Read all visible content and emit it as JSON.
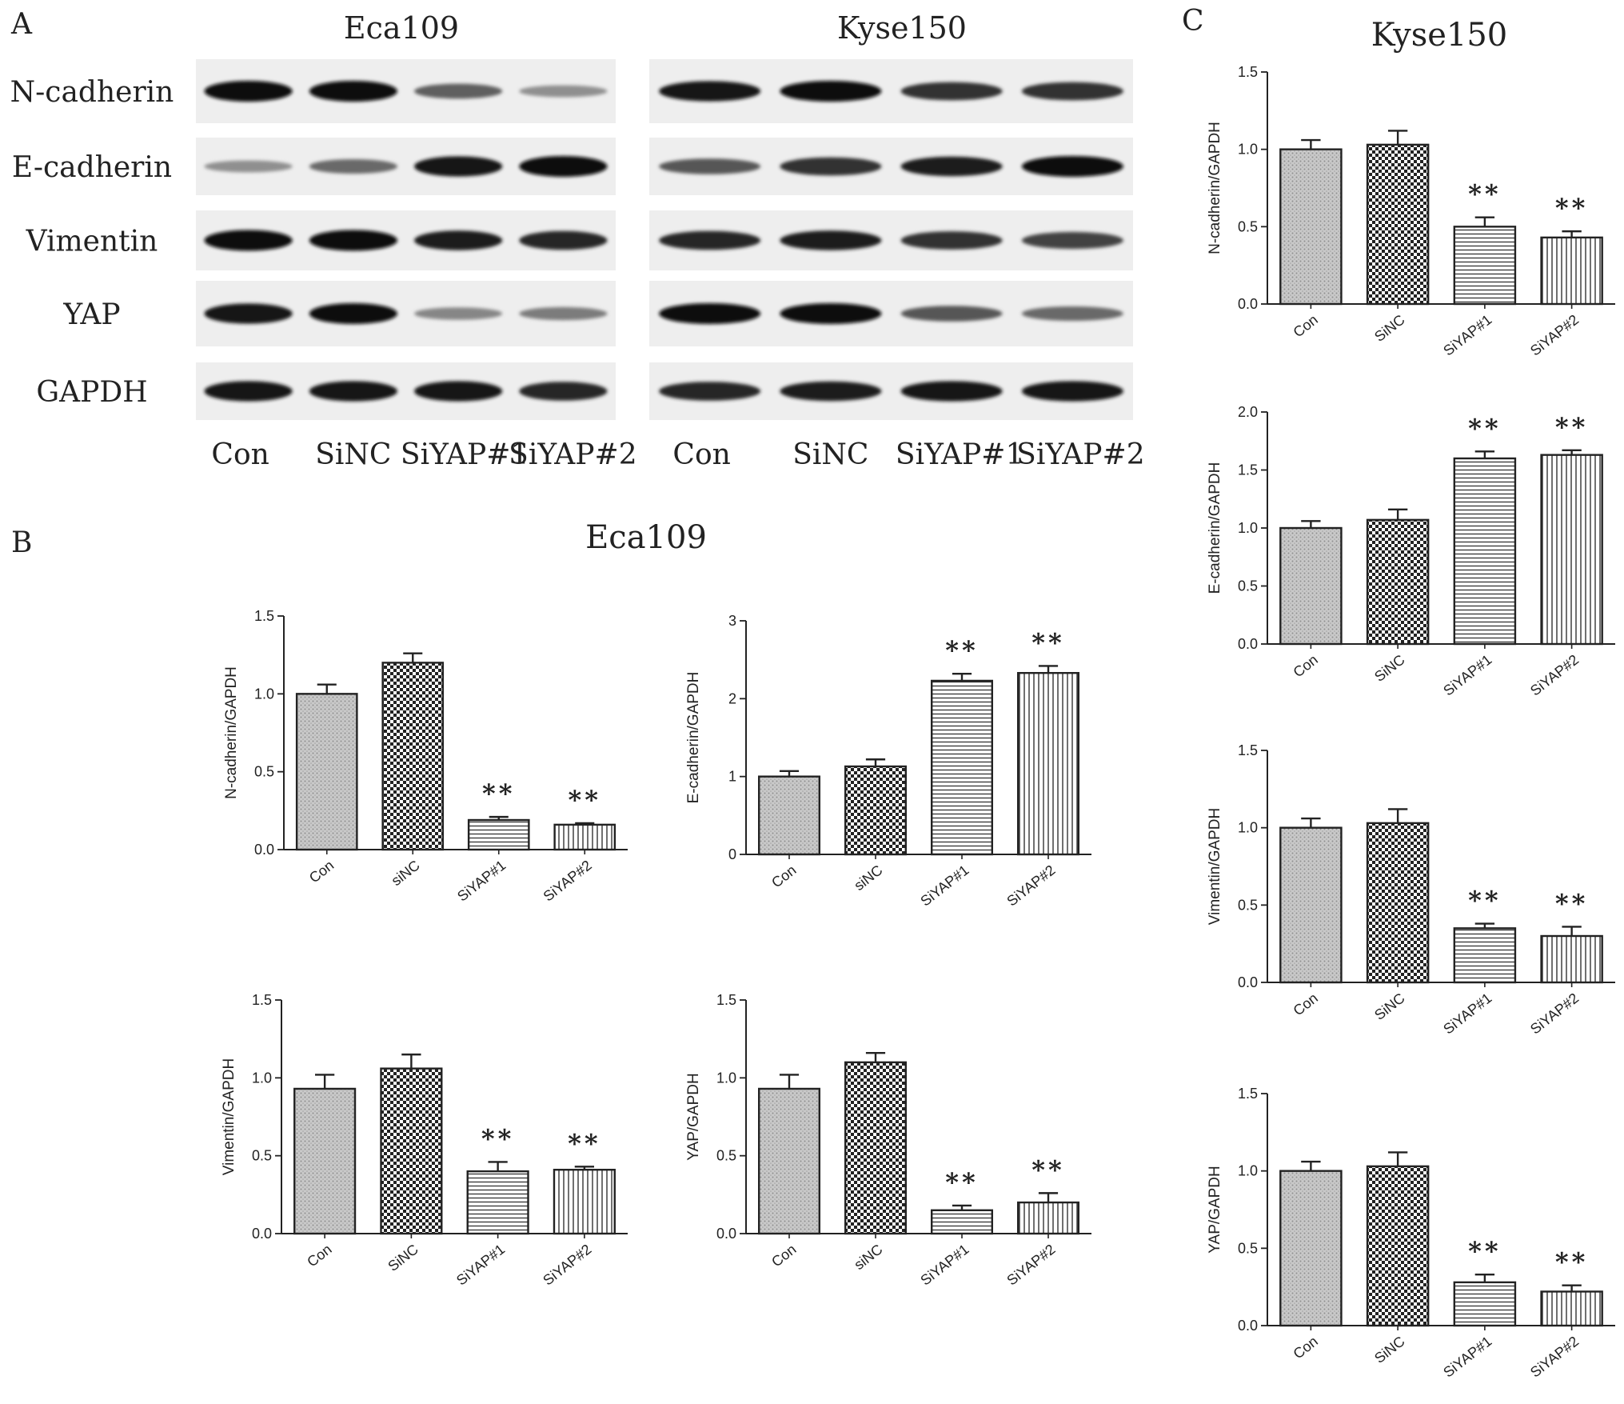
{
  "panels": {
    "a": {
      "letter": "A"
    },
    "b": {
      "letter": "B",
      "title": "Eca109"
    },
    "c": {
      "letter": "C",
      "title": "Kyse150"
    }
  },
  "blot": {
    "blocks": [
      {
        "title": "Eca109",
        "lanes": [
          "Con",
          "SiNC",
          "SiYAP#1",
          "SiYAP#2"
        ],
        "rows": [
          {
            "label": "N-cadherin",
            "intensity": [
              1.0,
              1.0,
              0.55,
              0.3
            ]
          },
          {
            "label": "E-cadherin",
            "intensity": [
              0.3,
              0.5,
              0.95,
              1.0
            ]
          },
          {
            "label": "Vimentin",
            "intensity": [
              1.0,
              1.0,
              0.9,
              0.85
            ]
          },
          {
            "label": "YAP",
            "intensity": [
              0.95,
              1.0,
              0.35,
              0.4
            ]
          },
          {
            "label": "GAPDH",
            "intensity": [
              0.95,
              0.95,
              0.95,
              0.85
            ]
          }
        ]
      },
      {
        "title": "Kyse150",
        "lanes": [
          "Con",
          "SiNC",
          "SiYAP#1",
          "SiYAP#2"
        ],
        "rows": [
          {
            "label": "N-cadherin",
            "intensity": [
              0.95,
              1.0,
              0.8,
              0.8
            ]
          },
          {
            "label": "E-cadherin",
            "intensity": [
              0.6,
              0.8,
              0.9,
              1.0
            ]
          },
          {
            "label": "Vimentin",
            "intensity": [
              0.85,
              0.9,
              0.8,
              0.7
            ]
          },
          {
            "label": "YAP",
            "intensity": [
              1.0,
              1.0,
              0.6,
              0.5
            ]
          },
          {
            "label": "GAPDH",
            "intensity": [
              0.85,
              0.9,
              0.95,
              0.95
            ]
          }
        ]
      }
    ]
  },
  "chart_data": [
    {
      "type": "bar",
      "panel": "B",
      "cell": "Eca109",
      "ylabel": "N-cadherin/GAPDH",
      "ylim": [
        0,
        1.5
      ],
      "yticks": [
        "0.0",
        "0.5",
        "1.0",
        "1.5"
      ],
      "categories": [
        "Con",
        "siNC",
        "SiYAP#1",
        "SiYAP#2"
      ],
      "values": [
        1.0,
        1.2,
        0.19,
        0.16
      ],
      "errors": [
        0.06,
        0.06,
        0.02,
        0.01
      ],
      "annotations": [
        "",
        "",
        "**",
        "**"
      ]
    },
    {
      "type": "bar",
      "panel": "B",
      "cell": "Eca109",
      "ylabel": "E-cadherin/GAPDH",
      "ylim": [
        0,
        3
      ],
      "yticks": [
        "0",
        "1",
        "2",
        "3"
      ],
      "categories": [
        "Con",
        "siNC",
        "SiYAP#1",
        "SiYAP#2"
      ],
      "values": [
        1.0,
        1.13,
        2.23,
        2.33
      ],
      "errors": [
        0.07,
        0.09,
        0.09,
        0.09
      ],
      "annotations": [
        "",
        "",
        "**",
        "**"
      ]
    },
    {
      "type": "bar",
      "panel": "B",
      "cell": "Eca109",
      "ylabel": "Vimentin/GAPDH",
      "ylim": [
        0,
        1.5
      ],
      "yticks": [
        "0.0",
        "0.5",
        "1.0",
        "1.5"
      ],
      "categories": [
        "Con",
        "SiNC",
        "SiYAP#1",
        "SiYAP#2"
      ],
      "values": [
        0.93,
        1.06,
        0.4,
        0.41
      ],
      "errors": [
        0.09,
        0.09,
        0.06,
        0.02
      ],
      "annotations": [
        "",
        "",
        "**",
        "**"
      ]
    },
    {
      "type": "bar",
      "panel": "B",
      "cell": "Eca109",
      "ylabel": "YAP/GAPDH",
      "ylim": [
        0,
        1.5
      ],
      "yticks": [
        "0.0",
        "0.5",
        "1.0",
        "1.5"
      ],
      "categories": [
        "Con",
        "siNC",
        "SiYAP#1",
        "SiYAP#2"
      ],
      "values": [
        0.93,
        1.1,
        0.15,
        0.2
      ],
      "errors": [
        0.09,
        0.06,
        0.03,
        0.06
      ],
      "annotations": [
        "",
        "",
        "**",
        "**"
      ]
    },
    {
      "type": "bar",
      "panel": "C",
      "cell": "Kyse150",
      "ylabel": "N-cadherin/GAPDH",
      "ylim": [
        0,
        1.5
      ],
      "yticks": [
        "0.0",
        "0.5",
        "1.0",
        "1.5"
      ],
      "categories": [
        "Con",
        "SiNC",
        "SiYAP#1",
        "SiYAP#2"
      ],
      "values": [
        1.0,
        1.03,
        0.5,
        0.43
      ],
      "errors": [
        0.06,
        0.09,
        0.06,
        0.04
      ],
      "annotations": [
        "",
        "",
        "**",
        "**"
      ]
    },
    {
      "type": "bar",
      "panel": "C",
      "cell": "Kyse150",
      "ylabel": "E-cadherin/GAPDH",
      "ylim": [
        0,
        2.0
      ],
      "yticks": [
        "0.0",
        "0.5",
        "1.0",
        "1.5",
        "2.0"
      ],
      "categories": [
        "Con",
        "SiNC",
        "SiYAP#1",
        "SiYAP#2"
      ],
      "values": [
        1.0,
        1.07,
        1.6,
        1.63
      ],
      "errors": [
        0.06,
        0.09,
        0.06,
        0.04
      ],
      "annotations": [
        "",
        "",
        "**",
        "**"
      ]
    },
    {
      "type": "bar",
      "panel": "C",
      "cell": "Kyse150",
      "ylabel": "Vimentin/GAPDH",
      "ylim": [
        0,
        1.5
      ],
      "yticks": [
        "0.0",
        "0.5",
        "1.0",
        "1.5"
      ],
      "categories": [
        "Con",
        "SiNC",
        "SiYAP#1",
        "SiYAP#2"
      ],
      "values": [
        1.0,
        1.03,
        0.35,
        0.3
      ],
      "errors": [
        0.06,
        0.09,
        0.03,
        0.06
      ],
      "annotations": [
        "",
        "",
        "**",
        "**"
      ]
    },
    {
      "type": "bar",
      "panel": "C",
      "cell": "Kyse150",
      "ylabel": "YAP/GAPDH",
      "ylim": [
        0,
        1.5
      ],
      "yticks": [
        "0.0",
        "0.5",
        "1.0",
        "1.5"
      ],
      "categories": [
        "Con",
        "SiNC",
        "SiYAP#1",
        "SiYAP#2"
      ],
      "values": [
        1.0,
        1.03,
        0.28,
        0.22
      ],
      "errors": [
        0.06,
        0.09,
        0.05,
        0.04
      ],
      "annotations": [
        "",
        "",
        "**",
        "**"
      ]
    }
  ]
}
